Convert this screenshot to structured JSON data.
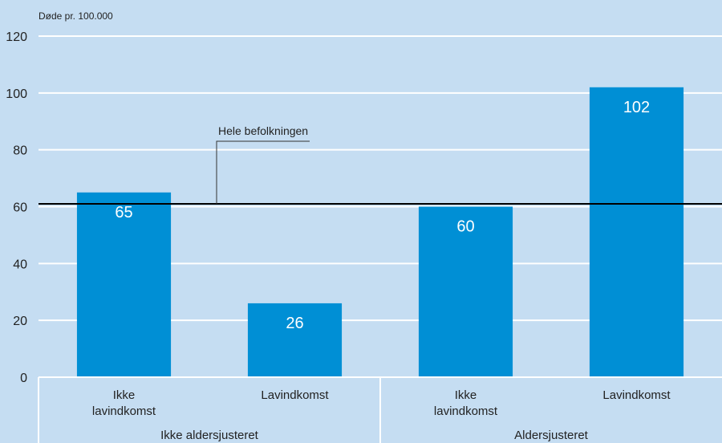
{
  "chart_data": {
    "type": "bar",
    "unit_label": "Døde pr. 100.000",
    "categories": [
      [
        "Ikke",
        "lavindkomst"
      ],
      [
        "Lavindkomst"
      ],
      [
        "Ikke",
        "lavindkomst"
      ],
      [
        "Lavindkomst"
      ]
    ],
    "groups": [
      {
        "label": "Ikke aldersjusteret",
        "categories": [
          0,
          1
        ]
      },
      {
        "label": "Aldersjusteret",
        "categories": [
          2,
          3
        ]
      }
    ],
    "values": [
      65,
      26,
      60,
      102
    ],
    "value_labels": [
      "65",
      "26",
      "60",
      "102"
    ],
    "yticks": [
      0,
      20,
      40,
      60,
      80,
      100,
      120
    ],
    "ylim": [
      0,
      120
    ],
    "grid": true,
    "reference_line": {
      "value": 61,
      "label": "Hele befolkningen"
    },
    "colors": {
      "bar": "#008fd5",
      "background": "#c5ddf2",
      "grid": "#ffffff",
      "reference": "#000000"
    }
  }
}
